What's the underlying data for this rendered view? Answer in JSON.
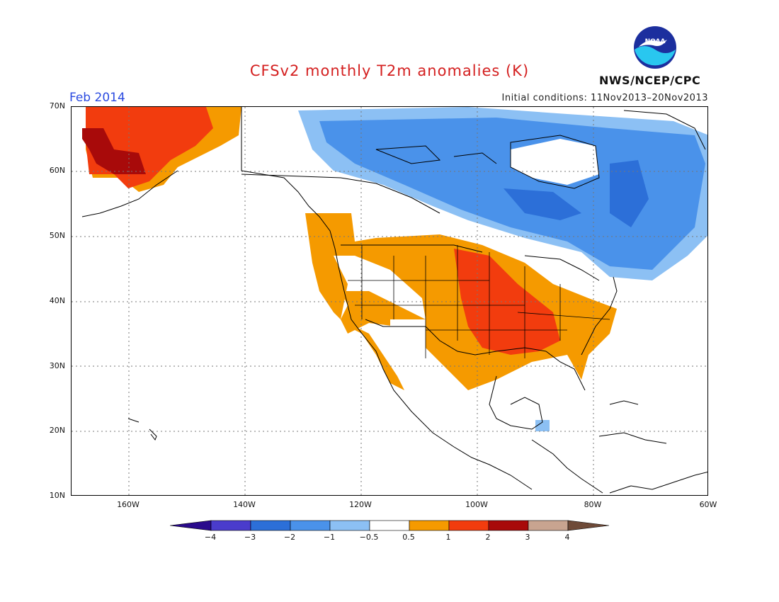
{
  "title": "CFSv2 monthly T2m anomalies (K)",
  "month": "Feb 2014",
  "initial_conditions": "Initial conditions: 11Nov2013–20Nov2013",
  "agency": "NWS/NCEP/CPC",
  "logo_text": "NOAA",
  "lat_labels": [
    "70N",
    "60N",
    "50N",
    "40N",
    "30N",
    "20N",
    "10N"
  ],
  "lon_labels": [
    "160W",
    "140W",
    "120W",
    "100W",
    "80W",
    "60W"
  ],
  "colorbar": {
    "labels": [
      "−4",
      "−3",
      "−2",
      "−1",
      "−0.5",
      "0.5",
      "1",
      "2",
      "3",
      "4"
    ],
    "colors": [
      "#2a0a8c",
      "#4a3ccc",
      "#2c6fd8",
      "#4a92ea",
      "#8cc0f4",
      "#ffffff",
      "#f59a00",
      "#f23c0e",
      "#a80a0a",
      "#c8a490",
      "#6e4a38"
    ]
  }
}
